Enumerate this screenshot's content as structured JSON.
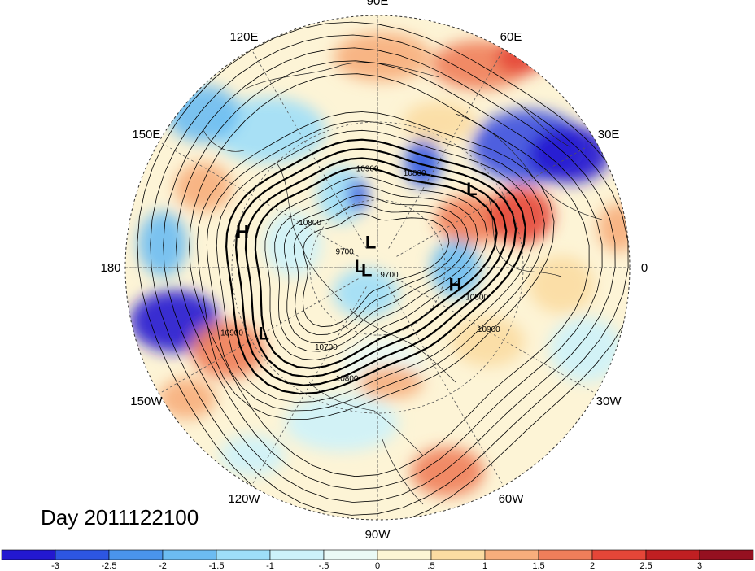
{
  "title": "Day 2011122100",
  "longitude_labels": [
    "90E",
    "60E",
    "30E",
    "0",
    "30W",
    "60W",
    "90W",
    "120W",
    "150W",
    "180",
    "150E",
    "120E"
  ],
  "pressure_systems": [
    {
      "type": "L",
      "lon_deg": 40,
      "lat_deg": 38
    },
    {
      "type": "H",
      "lon_deg": 165,
      "lat_deg": 32
    },
    {
      "type": "L",
      "lon_deg": 105,
      "lat_deg": 78
    },
    {
      "type": "L",
      "lon_deg": 175,
      "lat_deg": 82
    },
    {
      "type": "L",
      "lon_deg": -170,
      "lat_deg": 85
    },
    {
      "type": "H",
      "lon_deg": -12,
      "lat_deg": 55
    },
    {
      "type": "L",
      "lon_deg": -150,
      "lat_deg": 35
    }
  ],
  "contour_labels": [
    {
      "text": "10900",
      "lon_deg": 96,
      "lat_deg": 48
    },
    {
      "text": "10800",
      "lon_deg": 68,
      "lat_deg": 47
    },
    {
      "text": "10800",
      "lon_deg": 148,
      "lat_deg": 55
    },
    {
      "text": "9700",
      "lon_deg": 158,
      "lat_deg": 74
    },
    {
      "text": "9700",
      "lon_deg": -40,
      "lat_deg": 83
    },
    {
      "text": "10800",
      "lon_deg": -18,
      "lat_deg": 45
    },
    {
      "text": "10900",
      "lon_deg": -30,
      "lat_deg": 36
    },
    {
      "text": "10900",
      "lon_deg": -155,
      "lat_deg": 25
    },
    {
      "text": "10700",
      "lon_deg": -122,
      "lat_deg": 48
    },
    {
      "text": "10800",
      "lon_deg": -105,
      "lat_deg": 40
    }
  ],
  "colorbar": {
    "labels": [
      "-3",
      "-2.5",
      "-2",
      "-1.5",
      "-1",
      "-.5",
      "0",
      ".5",
      "1",
      "1.5",
      "2",
      "2.5",
      "3"
    ],
    "colors": [
      "#2318d0",
      "#2d56e2",
      "#4a94ec",
      "#6cbcf2",
      "#9edef8",
      "#cdf2fa",
      "#eafaf6",
      "#fdf6d4",
      "#fbdca2",
      "#f7ae7c",
      "#ef7e5a",
      "#e54638",
      "#c01f22",
      "#951020"
    ]
  }
}
